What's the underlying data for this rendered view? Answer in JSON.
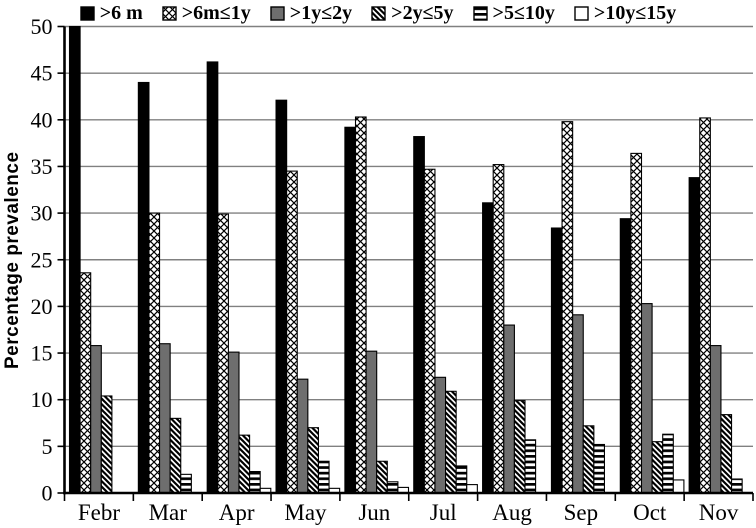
{
  "chart_data": {
    "type": "bar",
    "title": "",
    "xlabel": "",
    "ylabel": "Percentage prevalence",
    "ylim": [
      0,
      50
    ],
    "ytick_step": 5,
    "grid": true,
    "legend_position": "top",
    "categories": [
      "Febr",
      "Mar",
      "Apr",
      "May",
      "Jun",
      "Jul",
      "Aug",
      "Sep",
      "Oct",
      "Nov"
    ],
    "series": [
      {
        "name": ">6 m",
        "pattern": "solid-black",
        "values": [
          50.0,
          44.0,
          46.2,
          42.1,
          39.2,
          38.2,
          31.1,
          28.4,
          29.4,
          33.8
        ]
      },
      {
        "name": ">6m≤1y",
        "pattern": "crosshatch",
        "values": [
          23.6,
          30.0,
          29.9,
          34.5,
          40.3,
          34.7,
          35.2,
          39.8,
          36.4,
          40.2
        ]
      },
      {
        "name": ">1y≤2y",
        "pattern": "solid-gray",
        "values": [
          15.8,
          16.0,
          15.1,
          12.2,
          15.2,
          12.4,
          18.0,
          19.1,
          20.3,
          15.8
        ]
      },
      {
        "name": ">2y≤5y",
        "pattern": "diagonal",
        "values": [
          10.4,
          8.0,
          6.2,
          7.0,
          3.4,
          10.9,
          9.9,
          7.2,
          5.5,
          8.4
        ]
      },
      {
        "name": ">5≤10y",
        "pattern": "horizontal",
        "values": [
          0.0,
          2.0,
          2.3,
          3.4,
          1.2,
          2.9,
          5.7,
          5.2,
          6.3,
          1.5
        ]
      },
      {
        "name": ">10y≤15y",
        "pattern": "white",
        "values": [
          0.0,
          0.0,
          0.5,
          0.5,
          0.6,
          0.9,
          0.0,
          0.0,
          1.4,
          0.0
        ]
      }
    ],
    "yticks": [
      0,
      5,
      10,
      15,
      20,
      25,
      30,
      35,
      40,
      45,
      50
    ],
    "colors": {
      "bar_black": "#000000",
      "bar_gray": "#6e6e6e",
      "grid": "#808080",
      "axis": "#000000",
      "background": "#ffffff"
    }
  }
}
